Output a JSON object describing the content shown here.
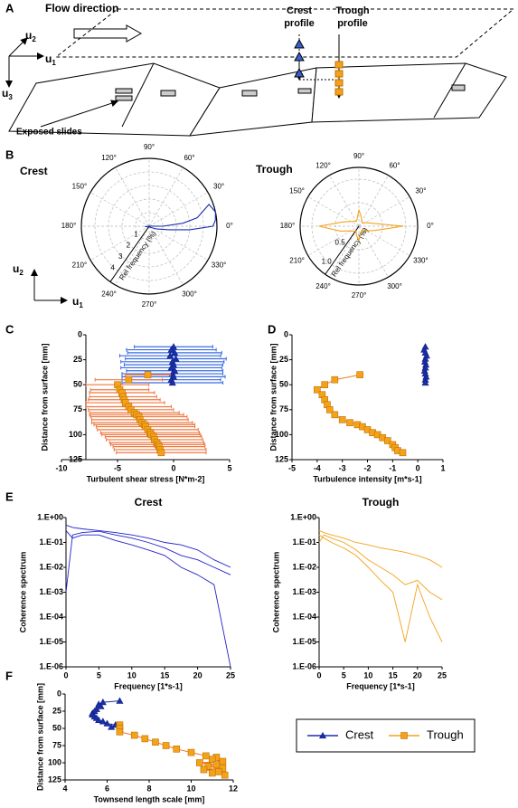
{
  "diagram": {
    "panel_labels": [
      "A",
      "B",
      "C",
      "D",
      "E",
      "F"
    ],
    "flow_direction": "Flow direction",
    "crest_profile": [
      "Crest",
      "profile"
    ],
    "trough_profile": [
      "Trough",
      "profile"
    ],
    "exposed_slides": "Exposed slides",
    "axis_names": {
      "u1": {
        "base": "u",
        "sub": "1"
      },
      "u2": {
        "base": "u",
        "sub": "2"
      },
      "u3": {
        "base": "u",
        "sub": "3"
      }
    }
  },
  "chart_data": [
    {
      "type": "polar",
      "title": "Crest",
      "theta_ticks": [
        {
          "value": 0,
          "label": "0°"
        },
        {
          "value": 30,
          "label": "30°"
        },
        {
          "value": 60,
          "label": "60°"
        },
        {
          "value": 90,
          "label": "90°"
        },
        {
          "value": 120,
          "label": "120°"
        },
        {
          "value": 150,
          "label": "150°"
        },
        {
          "value": 180,
          "label": "180°"
        },
        {
          "value": 210,
          "label": "210°"
        },
        {
          "value": 240,
          "label": "240°"
        },
        {
          "value": 270,
          "label": "270°"
        },
        {
          "value": 300,
          "label": "300°"
        },
        {
          "value": 330,
          "label": "330°"
        }
      ],
      "rlim": [
        0,
        5
      ],
      "rticks": [
        1,
        2,
        3,
        4
      ],
      "rlabel": "Rel frequency (%)",
      "series": [
        {
          "color": "#1a2fb0",
          "angles": [
            180,
            185,
            200,
            340,
            350,
            355,
            0,
            5,
            12,
            20,
            10,
            5,
            0,
            175
          ],
          "values": [
            0.2,
            0.3,
            0.1,
            0.6,
            1.5,
            3,
            4.7,
            4.9,
            5,
            4.7,
            3.6,
            2.5,
            1,
            0.1
          ]
        }
      ]
    },
    {
      "type": "polar",
      "title": "Trough",
      "theta_ticks": [
        {
          "value": 0,
          "label": "0°"
        },
        {
          "value": 30,
          "label": "30°"
        },
        {
          "value": 60,
          "label": "60°"
        },
        {
          "value": 90,
          "label": "90°"
        },
        {
          "value": 120,
          "label": "120°"
        },
        {
          "value": 150,
          "label": "150°"
        },
        {
          "value": 180,
          "label": "180°"
        },
        {
          "value": 210,
          "label": "210°"
        },
        {
          "value": 240,
          "label": "240°"
        },
        {
          "value": 270,
          "label": "270°"
        },
        {
          "value": 300,
          "label": "300°"
        },
        {
          "value": 330,
          "label": "330°"
        }
      ],
      "rlim": [
        0,
        1.25
      ],
      "rticks": [
        0.5,
        {
          "value": 1,
          "label": "1.0"
        }
      ],
      "rlabel": "Rel frequency (%)",
      "series": [
        {
          "color": "#f5a21b",
          "angles": [
            0,
            15,
            30,
            45,
            60,
            75,
            90,
            105,
            120,
            135,
            150,
            165,
            180,
            195,
            210,
            225,
            240,
            255,
            270,
            285,
            300,
            315,
            330,
            345,
            0
          ],
          "values": [
            0.95,
            0.25,
            0.15,
            0.1,
            0.12,
            0.2,
            0.35,
            0.15,
            0.12,
            0.15,
            0.2,
            0.35,
            0.85,
            0.4,
            0.2,
            0.15,
            0.12,
            0.2,
            0.3,
            0.15,
            0.12,
            0.1,
            0.2,
            0.35,
            0.95
          ]
        }
      ]
    },
    {
      "type": "errorbar",
      "xlabel": "Turbulent shear stress [N*m-2]",
      "ylabel": "Distance from surface [mm]",
      "xlim": [
        -10,
        5
      ],
      "xticks": [
        -10,
        -5,
        0,
        5
      ],
      "ylim": [
        0,
        125
      ],
      "yticks": [
        0,
        25,
        50,
        75,
        100,
        125
      ],
      "y_reversed": true,
      "series": [
        {
          "color": "#1a2fb0",
          "bar_color": "#3a6be0",
          "marker": "triangle",
          "y": [
            12,
            15,
            18,
            21,
            24,
            27,
            30,
            33,
            36,
            39,
            42,
            45,
            48
          ],
          "x": [
            0,
            -0.2,
            0.1,
            -0.3,
            0.2,
            -0.1,
            0,
            -0.2,
            0.1,
            -0.1,
            0,
            -0.2,
            -0.1
          ],
          "errors": [
            3.5,
            4,
            4.2,
            4.5,
            4.5,
            4.6,
            4.4,
            4.5,
            4.3,
            4.5,
            4.6,
            4.4,
            4.5
          ]
        },
        {
          "color": "#f5a21b",
          "bar_color": "#f07840",
          "marker": "square",
          "y": [
            40,
            45,
            50,
            55,
            58,
            62,
            65,
            68,
            72,
            75,
            78,
            80,
            82,
            85,
            88,
            90,
            92,
            95,
            98,
            100,
            102,
            105,
            108,
            110,
            112,
            115,
            118
          ],
          "x": [
            -2.3,
            -4,
            -5,
            -4.8,
            -4.6,
            -4.5,
            -4.4,
            -4.3,
            -4.0,
            -3.8,
            -3.5,
            -3.3,
            -3.1,
            -3.0,
            -2.8,
            -2.6,
            -2.5,
            -2.3,
            -2.1,
            -2.0,
            -1.8,
            -1.7,
            -1.5,
            -1.4,
            -1.3,
            -1.2,
            -1.1
          ],
          "errors": [
            2,
            3,
            2.8,
            2.6,
            2.9,
            3,
            3.2,
            3.5,
            3.8,
            3.8,
            4,
            4.2,
            4.3,
            4.3,
            4.5,
            4.5,
            4.4,
            4.5,
            4.4,
            4.4,
            4.3,
            4.3,
            4.2,
            4.2,
            4.1,
            4.1,
            4
          ]
        }
      ]
    },
    {
      "type": "scatter",
      "xlabel": "Turbulence intensity [m*s-1]",
      "ylabel": "Distance from surface [mm]",
      "xlim": [
        -5,
        1
      ],
      "xticks": [
        -5,
        -4,
        -3,
        -2,
        -1,
        0,
        1
      ],
      "ylim": [
        0,
        125
      ],
      "yticks": [
        0,
        25,
        50,
        75,
        100,
        125
      ],
      "y_reversed": true,
      "series": [
        {
          "color": "#1a2fb0",
          "marker": "triangle",
          "y": [
            12,
            15,
            18,
            21,
            24,
            27,
            30,
            33,
            36,
            39,
            42,
            45,
            48
          ],
          "x": [
            0.3,
            0.25,
            0.3,
            0.35,
            0.3,
            0.28,
            0.32,
            0.3,
            0.27,
            0.3,
            0.33,
            0.3,
            0.3
          ]
        },
        {
          "color": "#f5a21b",
          "line_color": "#f07820",
          "marker": "square",
          "y": [
            40,
            45,
            50,
            55,
            60,
            65,
            70,
            75,
            80,
            85,
            88,
            90,
            92,
            95,
            98,
            100,
            103,
            106,
            110,
            113,
            116,
            118
          ],
          "x": [
            -2.3,
            -3.3,
            -3.7,
            -4.0,
            -3.8,
            -3.7,
            -3.6,
            -3.5,
            -3.3,
            -3.0,
            -2.7,
            -2.4,
            -2.2,
            -2.0,
            -1.8,
            -1.6,
            -1.4,
            -1.2,
            -1.0,
            -0.9,
            -0.8,
            -0.6
          ]
        }
      ]
    },
    {
      "type": "line",
      "title": "Crest",
      "xlabel": "Frequency [1*s-1]",
      "ylabel": "Coherence spectrum",
      "xlim": [
        0,
        25
      ],
      "xticks": [
        0,
        5,
        10,
        15,
        20,
        25
      ],
      "ylim": [
        1e-06,
        1
      ],
      "log_y": true,
      "yticks": [
        {
          "value": 1,
          "label": "1.E+00"
        },
        {
          "value": 0.1,
          "label": "1.E-01"
        },
        {
          "value": 0.01,
          "label": "1.E-02"
        },
        {
          "value": 0.001,
          "label": "1.E-03"
        },
        {
          "value": 0.0001,
          "label": "1.E-04"
        },
        {
          "value": 1e-05,
          "label": "1.E-05"
        },
        {
          "value": 1e-06,
          "label": "1.E-06"
        }
      ],
      "x": [
        0,
        1,
        2.5,
        5,
        7.5,
        10,
        12.5,
        15,
        17.5,
        20,
        22.5,
        25
      ],
      "series": [
        {
          "color": "#2222cc",
          "values": [
            0.5,
            0.4,
            0.35,
            0.3,
            0.25,
            0.2,
            0.15,
            0.1,
            0.08,
            0.05,
            0.02,
            0.01
          ]
        },
        {
          "color": "#2222cc",
          "values": [
            0.001,
            0.2,
            0.25,
            0.28,
            0.2,
            0.15,
            0.1,
            0.06,
            0.03,
            0.02,
            0.01,
            0.005
          ]
        },
        {
          "color": "#2222cc",
          "values": [
            0.3,
            0.15,
            0.2,
            0.2,
            0.12,
            0.08,
            0.05,
            0.03,
            0.01,
            0.005,
            0.002,
            1e-06
          ]
        }
      ]
    },
    {
      "type": "line",
      "title": "Trough",
      "xlabel": "Frequency [1*s-1]",
      "ylabel": "Coherence spectrum",
      "xlim": [
        0,
        25
      ],
      "xticks": [
        0,
        5,
        10,
        15,
        20,
        25
      ],
      "ylim": [
        1e-06,
        1
      ],
      "log_y": true,
      "yticks": [
        {
          "value": 1,
          "label": "1.E+00"
        },
        {
          "value": 0.1,
          "label": "1.E-01"
        },
        {
          "value": 0.01,
          "label": "1.E-02"
        },
        {
          "value": 0.001,
          "label": "1.E-03"
        },
        {
          "value": 0.0001,
          "label": "1.E-04"
        },
        {
          "value": 1e-05,
          "label": "1.E-05"
        },
        {
          "value": 1e-06,
          "label": "1.E-06"
        }
      ],
      "x": [
        0,
        1,
        2.5,
        5,
        7.5,
        10,
        12.5,
        15,
        17.5,
        20,
        22.5,
        25
      ],
      "series": [
        {
          "color": "#f5a21b",
          "values": [
            0.3,
            0.25,
            0.2,
            0.15,
            0.1,
            0.08,
            0.06,
            0.05,
            0.04,
            0.03,
            0.02,
            0.01
          ]
        },
        {
          "color": "#f5a21b",
          "values": [
            0.1,
            0.2,
            0.15,
            0.1,
            0.05,
            0.02,
            0.01,
            0.005,
            0.002,
            0.003,
            0.001,
            0.0005
          ]
        },
        {
          "color": "#f5a21b",
          "values": [
            0.2,
            0.15,
            0.1,
            0.06,
            0.03,
            0.01,
            0.003,
            0.001,
            1e-05,
            0.002,
            0.0001,
            1e-05
          ]
        }
      ]
    },
    {
      "type": "scatter",
      "xlabel": "Townsend length scale [mm]",
      "ylabel": "Distance from surface [mm]",
      "xlim": [
        4,
        12
      ],
      "xticks": [
        4,
        6,
        8,
        10,
        12
      ],
      "ylim": [
        0,
        125
      ],
      "yticks": [
        0,
        25,
        50,
        75,
        100,
        125
      ],
      "y_reversed": true,
      "series": [
        {
          "color": "#1a2fb0",
          "marker": "triangle",
          "line": true,
          "y": [
            10,
            12,
            15,
            18,
            22,
            25,
            28,
            30,
            33,
            35,
            38,
            40,
            43,
            45,
            47,
            48
          ],
          "x": [
            6.6,
            5.8,
            5.6,
            5.7,
            5.5,
            5.4,
            5.3,
            5.3,
            5.4,
            5.5,
            5.6,
            5.8,
            6.0,
            6.4,
            6.6,
            6.2
          ]
        },
        {
          "color": "#f5a21b",
          "line_color": "#f07820",
          "marker": "square",
          "y": [
            45,
            50,
            55,
            60,
            65,
            70,
            75,
            80,
            85,
            90,
            92,
            95,
            98,
            100,
            103,
            105,
            108,
            110,
            113,
            115,
            118
          ],
          "x": [
            6.6,
            6.6,
            6.6,
            7.3,
            7.8,
            8.3,
            8.8,
            9.3,
            10,
            10.7,
            11.2,
            11,
            11.5,
            10.4,
            11.2,
            10.8,
            11.5,
            10.6,
            11.3,
            11,
            11.6
          ]
        }
      ]
    }
  ],
  "legend": {
    "entries": [
      {
        "name": "Crest",
        "color": "#1a2fb0",
        "marker": "triangle"
      },
      {
        "name": "Trough",
        "color": "#f5a21b",
        "marker": "square"
      }
    ]
  }
}
